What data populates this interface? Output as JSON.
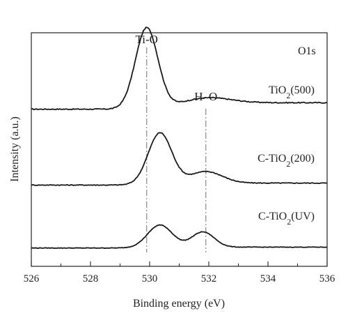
{
  "chart_data": {
    "type": "line",
    "title": "",
    "panel_label": "O1s",
    "xlabel": "Binding energy (eV)",
    "ylabel": "Intensity (a.u.)",
    "xlim": [
      526,
      536
    ],
    "x_ticks": [
      "526",
      "528",
      "530",
      "532",
      "534",
      "536"
    ],
    "grid": false,
    "legend": "none",
    "line_color": "#1a1a1a",
    "reference_line_color": "#888888",
    "reference_lines": [
      {
        "label": "Ti-O",
        "x": 529.9
      },
      {
        "label": "H–O",
        "x": 531.9
      }
    ],
    "series": [
      {
        "label_parts": [
          "TiO",
          "2",
          "(500)"
        ],
        "baseline": 0.15,
        "tail": 0.23,
        "peaks": [
          {
            "center": 529.9,
            "height": 1.0,
            "width": 0.38
          },
          {
            "center": 531.9,
            "height": 0.07,
            "width": 0.8
          }
        ]
      },
      {
        "label_parts": [
          "C-TiO",
          "2",
          "(200)"
        ],
        "baseline": 0.07,
        "tail": 0.1,
        "peaks": [
          {
            "center": 530.35,
            "height": 0.79,
            "width": 0.4
          },
          {
            "center": 531.9,
            "height": 0.18,
            "width": 0.55
          }
        ]
      },
      {
        "label_parts": [
          "C-TiO",
          "2",
          "(UV)"
        ],
        "baseline": 0.02,
        "tail": 0.04,
        "peaks": [
          {
            "center": 530.35,
            "height": 0.52,
            "width": 0.42
          },
          {
            "center": 531.8,
            "height": 0.35,
            "width": 0.38
          }
        ]
      }
    ]
  }
}
